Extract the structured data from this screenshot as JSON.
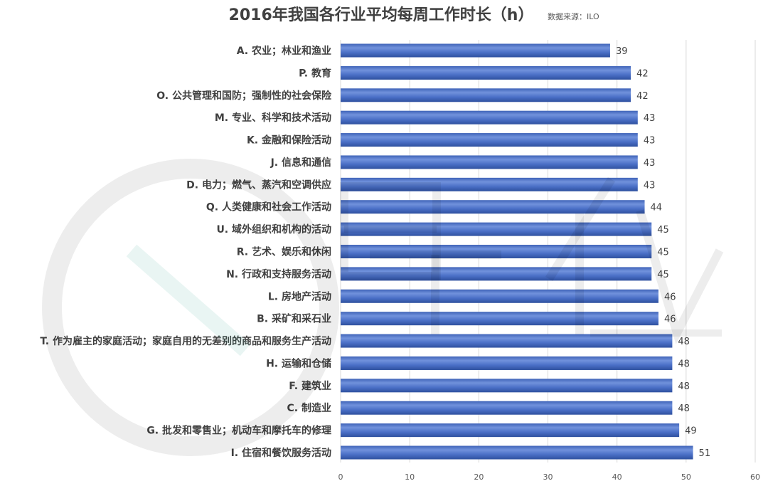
{
  "chart_data": {
    "type": "bar",
    "horizontal": true,
    "title": "2016年我国各行业平均每周工作时长（h）",
    "source": "数据来源：ILO",
    "categories": [
      "A. 农业；林业和渔业",
      "P. 教育",
      "O. 公共管理和国防；强制性的社会保险",
      "M. 专业、科学和技术活动",
      "K. 金融和保险活动",
      "J. 信息和通信",
      "D. 电力；燃气、蒸汽和空调供应",
      "Q. 人类健康和社会工作活动",
      "U. 域外组织和机构的活动",
      "R. 艺术、娱乐和休闲",
      "N. 行政和支持服务活动",
      "L. 房地产活动",
      "B. 采矿和采石业",
      "T. 作为雇主的家庭活动；家庭自用的无差别的商品和服务生产活动",
      "H. 运输和仓储",
      "F. 建筑业",
      "C. 制造业",
      "G. 批发和零售业；机动车和摩托车的修理",
      "I. 住宿和餐饮服务活动"
    ],
    "values": [
      39,
      42,
      42,
      43,
      43,
      43,
      43,
      44,
      45,
      45,
      45,
      46,
      46,
      48,
      48,
      48,
      48,
      49,
      51
    ],
    "xlim": [
      0,
      60
    ],
    "xticks": [
      0,
      10,
      20,
      30,
      40,
      50,
      60
    ],
    "grid": true,
    "colors": {
      "bar_top": "#3f63b8",
      "bar_highlight": "#7192dc",
      "bar_mid": "#4a6fc6",
      "bar_bottom": "#2f519f",
      "title": "#404040",
      "text": "#404040",
      "axis_text": "#595959",
      "grid": "#d9d9d9"
    }
  }
}
